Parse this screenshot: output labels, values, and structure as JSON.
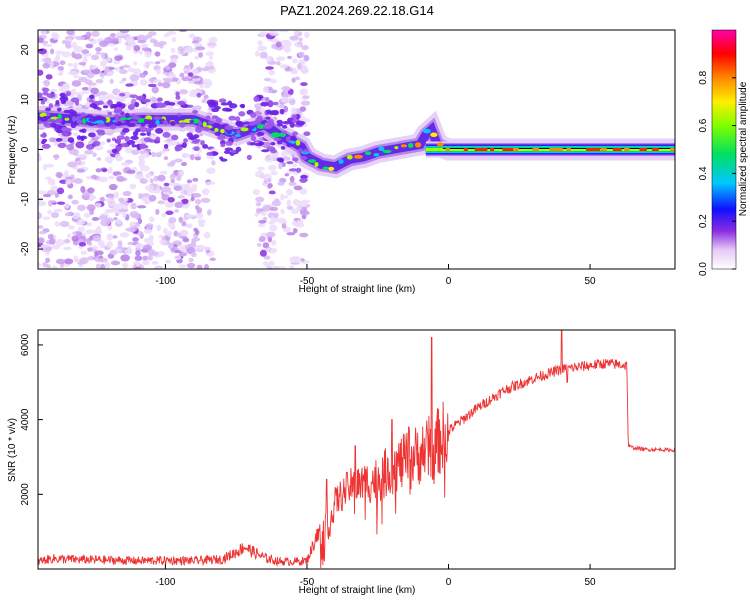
{
  "figure": {
    "title": "PAZ1.2024.269.22.18.G14"
  },
  "chart_data": [
    {
      "type": "heatmap",
      "title": "PAZ1.2024.269.22.18.G14",
      "xlabel": "Height of straight line (km)",
      "ylabel": "Frequency (Hz)",
      "xlim": [
        -145,
        80
      ],
      "ylim": [
        -24,
        24
      ],
      "xticks": [
        -100,
        -50,
        0,
        50
      ],
      "yticks": [
        -20,
        -10,
        0,
        10,
        20
      ],
      "colorbar": {
        "label": "Normalized spectral amplitude",
        "range": [
          0,
          1
        ],
        "ticks": [
          "0.0",
          "0.2",
          "0.4",
          "0.6",
          "0.8"
        ],
        "colormap": "rainbow (white-purple-blue-cyan-green-yellow-red-magenta)"
      },
      "ridge_frequency": {
        "description": "frequency of the dominant signal vs height",
        "x": [
          -142,
          -130,
          -120,
          -110,
          -100,
          -90,
          -85,
          -80,
          -75,
          -70,
          -65,
          -60,
          -55,
          -52,
          -50,
          -45,
          -40,
          -35,
          -30,
          -25,
          -20,
          -15,
          -10,
          -8,
          -6,
          -4,
          0,
          20,
          40,
          60,
          80
        ],
        "y": [
          6.5,
          6,
          5.5,
          6,
          6,
          6,
          5,
          4,
          3,
          4,
          5,
          3,
          1.5,
          0.5,
          -1.5,
          -3,
          -3.5,
          -2,
          -1.5,
          -0.5,
          0,
          0.5,
          1,
          3,
          4,
          1,
          0,
          0,
          0,
          0,
          0
        ]
      }
    },
    {
      "type": "line",
      "xlabel": "Height of straight line (km)",
      "ylabel": "SNR (10 * v/v)",
      "xlim": [
        -145,
        80
      ],
      "ylim": [
        0,
        6400
      ],
      "xticks": [
        -100,
        -50,
        0,
        50
      ],
      "yticks": [
        2000,
        4000,
        6000
      ],
      "series": [
        {
          "color": "#ee3333",
          "x": [
            -145,
            -140,
            -130,
            -120,
            -110,
            -100,
            -90,
            -80,
            -75,
            -72,
            -70,
            -65,
            -60,
            -55,
            -50,
            -47,
            -45,
            -42,
            -40,
            -35,
            -30,
            -25,
            -20,
            -15,
            -10,
            -5,
            0,
            5,
            10,
            20,
            30,
            40,
            50,
            55,
            60,
            63,
            63.5,
            65,
            70,
            75,
            80
          ],
          "y": [
            200,
            280,
            250,
            240,
            220,
            230,
            220,
            260,
            450,
            600,
            500,
            300,
            200,
            200,
            220,
            800,
            1000,
            1200,
            1800,
            2200,
            2300,
            2400,
            2700,
            2900,
            3100,
            3300,
            3700,
            4000,
            4300,
            4800,
            5100,
            5350,
            5450,
            5500,
            5480,
            5450,
            3300,
            3250,
            3200,
            3200,
            3180
          ]
        }
      ],
      "spikes": {
        "x": [
          -43,
          -33,
          -20,
          -14,
          -6,
          40,
          42
        ],
        "y": [
          2400,
          3300,
          4000,
          3800,
          6200,
          6400,
          5000
        ]
      }
    }
  ]
}
